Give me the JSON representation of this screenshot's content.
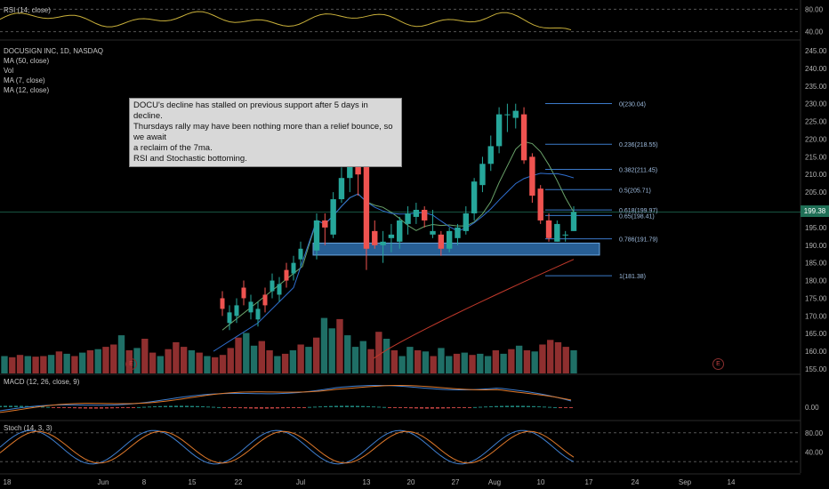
{
  "chart_data": {
    "type": "candlestick",
    "symbol_line": "DOCUSIGN INC, 1D, NASDAQ",
    "indicators_main": [
      "MA (50, close)",
      "Vol",
      "MA (7, close)",
      "MA (12, close)"
    ],
    "annotation": [
      "DOCU's decline has stalled on previous support after 5 days in decline.",
      "Thursdays rally may have been nothing more than a relief bounce, so we await",
      "a reclaim of the 7ma.",
      "RSI and Stochastic bottoming."
    ],
    "last_price": "199.38",
    "price_axis": [
      "245.00",
      "240.00",
      "235.00",
      "230.00",
      "225.00",
      "220.00",
      "215.00",
      "210.00",
      "205.00",
      "200.00",
      "195.00",
      "190.00",
      "185.00",
      "180.00",
      "175.00",
      "170.00",
      "165.00",
      "160.00",
      "155.00"
    ],
    "price_axis_range": [
      155,
      245
    ],
    "x_axis_labels": [
      "18",
      "Jun",
      "8",
      "15",
      "22",
      "Jul",
      "13",
      "20",
      "27",
      "Aug",
      "10",
      "17",
      "24",
      "Sep",
      "14"
    ],
    "fib_levels": [
      {
        "label": "0(230.04)",
        "value": 230.04
      },
      {
        "label": "0.236(218.55)",
        "value": 218.55
      },
      {
        "label": "0.382(211.45)",
        "value": 211.45
      },
      {
        "label": "0.5(205.71)",
        "value": 205.71
      },
      {
        "label": "0.618(199.97)",
        "value": 199.97
      },
      {
        "label": "0.65(198.41)",
        "value": 198.41
      },
      {
        "label": "0.786(191.79)",
        "value": 191.79
      },
      {
        "label": "1(181.38)",
        "value": 181.38
      }
    ],
    "support_zone": [
      187.2,
      190.6
    ],
    "candles": [
      {
        "o": 188.5,
        "h": 199,
        "l": 186,
        "c": 197
      },
      {
        "o": 197,
        "h": 199,
        "l": 190,
        "c": 195
      },
      {
        "o": 193,
        "h": 205,
        "l": 192,
        "c": 203
      },
      {
        "o": 203,
        "h": 212,
        "l": 202,
        "c": 209
      },
      {
        "o": 209,
        "h": 217,
        "l": 205,
        "c": 213
      },
      {
        "o": 213,
        "h": 216,
        "l": 204,
        "c": 210
      },
      {
        "o": 216,
        "h": 218,
        "l": 183,
        "c": 189
      },
      {
        "o": 194,
        "h": 197,
        "l": 189,
        "c": 190
      },
      {
        "o": 190,
        "h": 194,
        "l": 185,
        "c": 191
      },
      {
        "o": 192,
        "h": 196,
        "l": 188,
        "c": 193
      },
      {
        "o": 191,
        "h": 198,
        "l": 189,
        "c": 197
      },
      {
        "o": 196,
        "h": 201,
        "l": 193,
        "c": 199
      },
      {
        "o": 198,
        "h": 202,
        "l": 196,
        "c": 200
      },
      {
        "o": 200,
        "h": 201,
        "l": 195,
        "c": 197
      },
      {
        "o": 193,
        "h": 200,
        "l": 192,
        "c": 194
      },
      {
        "o": 193,
        "h": 194,
        "l": 187,
        "c": 189
      },
      {
        "o": 189,
        "h": 195,
        "l": 188,
        "c": 194
      },
      {
        "o": 192,
        "h": 196,
        "l": 190,
        "c": 195
      },
      {
        "o": 194,
        "h": 201,
        "l": 193,
        "c": 199
      },
      {
        "o": 199,
        "h": 209,
        "l": 197,
        "c": 208
      },
      {
        "o": 207,
        "h": 215,
        "l": 205,
        "c": 213
      },
      {
        "o": 213,
        "h": 221,
        "l": 211,
        "c": 218
      },
      {
        "o": 218,
        "h": 229,
        "l": 216,
        "c": 227
      },
      {
        "o": 227,
        "h": 230,
        "l": 222,
        "c": 227
      },
      {
        "o": 226,
        "h": 230,
        "l": 223,
        "c": 228
      },
      {
        "o": 227,
        "h": 229,
        "l": 213,
        "c": 214
      },
      {
        "o": 215,
        "h": 216,
        "l": 202,
        "c": 204
      },
      {
        "o": 206,
        "h": 207,
        "l": 196,
        "c": 197
      },
      {
        "o": 197,
        "h": 199,
        "l": 191,
        "c": 192
      },
      {
        "o": 191,
        "h": 197,
        "l": 191,
        "c": 196
      },
      {
        "o": 193,
        "h": 194,
        "l": 191,
        "c": 193
      },
      {
        "o": 194,
        "h": 201,
        "l": 194,
        "c": 199.4
      }
    ],
    "volume_bars": [
      {
        "v": 0.3,
        "up": true
      },
      {
        "v": 0.28,
        "up": false
      },
      {
        "v": 0.32,
        "up": false
      },
      {
        "v": 0.3,
        "up": true
      },
      {
        "v": 0.29,
        "up": false
      },
      {
        "v": 0.3,
        "up": false
      },
      {
        "v": 0.32,
        "up": true
      },
      {
        "v": 0.38,
        "up": false
      },
      {
        "v": 0.34,
        "up": true
      },
      {
        "v": 0.3,
        "up": false
      },
      {
        "v": 0.36,
        "up": true
      },
      {
        "v": 0.4,
        "up": false
      },
      {
        "v": 0.42,
        "up": true
      },
      {
        "v": 0.46,
        "up": false
      },
      {
        "v": 0.5,
        "up": false
      },
      {
        "v": 0.66,
        "up": true
      },
      {
        "v": 0.4,
        "up": false
      },
      {
        "v": 0.44,
        "up": true
      },
      {
        "v": 0.6,
        "up": false
      },
      {
        "v": 0.36,
        "up": false
      },
      {
        "v": 0.3,
        "up": true
      },
      {
        "v": 0.42,
        "up": false
      },
      {
        "v": 0.54,
        "up": false
      },
      {
        "v": 0.46,
        "up": false
      },
      {
        "v": 0.4,
        "up": true
      },
      {
        "v": 0.36,
        "up": false
      },
      {
        "v": 0.3,
        "up": true
      },
      {
        "v": 0.28,
        "up": false
      },
      {
        "v": 0.32,
        "up": false
      },
      {
        "v": 0.44,
        "up": false
      },
      {
        "v": 0.62,
        "up": false
      },
      {
        "v": 0.7,
        "up": true
      },
      {
        "v": 0.48,
        "up": true
      },
      {
        "v": 0.56,
        "up": false
      },
      {
        "v": 0.4,
        "up": false
      },
      {
        "v": 0.3,
        "up": true
      },
      {
        "v": 0.34,
        "up": false
      },
      {
        "v": 0.4,
        "up": true
      },
      {
        "v": 0.5,
        "up": false
      },
      {
        "v": 0.46,
        "up": true
      },
      {
        "v": 0.62,
        "up": false
      },
      {
        "v": 0.96,
        "up": true
      },
      {
        "v": 0.78,
        "up": true
      },
      {
        "v": 0.94,
        "up": false
      },
      {
        "v": 0.66,
        "up": true
      },
      {
        "v": 0.46,
        "up": true
      },
      {
        "v": 0.56,
        "up": true
      },
      {
        "v": 0.42,
        "up": false
      },
      {
        "v": 0.72,
        "up": false
      },
      {
        "v": 0.6,
        "up": true
      },
      {
        "v": 0.4,
        "up": false
      },
      {
        "v": 0.3,
        "up": true
      },
      {
        "v": 0.46,
        "up": true
      },
      {
        "v": 0.4,
        "up": false
      },
      {
        "v": 0.38,
        "up": true
      },
      {
        "v": 0.3,
        "up": false
      },
      {
        "v": 0.44,
        "up": true
      },
      {
        "v": 0.3,
        "up": true
      },
      {
        "v": 0.34,
        "up": false
      },
      {
        "v": 0.36,
        "up": true
      },
      {
        "v": 0.32,
        "up": false
      },
      {
        "v": 0.34,
        "up": true
      },
      {
        "v": 0.3,
        "up": true
      },
      {
        "v": 0.4,
        "up": false
      },
      {
        "v": 0.34,
        "up": true
      },
      {
        "v": 0.42,
        "up": false
      },
      {
        "v": 0.48,
        "up": true
      },
      {
        "v": 0.4,
        "up": false
      },
      {
        "v": 0.38,
        "up": true
      },
      {
        "v": 0.5,
        "up": false
      },
      {
        "v": 0.58,
        "up": false
      },
      {
        "v": 0.54,
        "up": false
      },
      {
        "v": 0.46,
        "up": false
      },
      {
        "v": 0.4,
        "up": true
      }
    ],
    "rsi": {
      "label": "RSI (14, close)",
      "axis": [
        "80.00",
        "40.00"
      ]
    },
    "macd": {
      "label": "MACD (12, 26, close, 9)",
      "axis": [
        "0.00"
      ]
    },
    "stoch": {
      "label": "Stoch (14, 3, 3)",
      "axis": [
        "80.00",
        "40.00"
      ]
    },
    "colors": {
      "up": "#26a69a",
      "down": "#ef5350",
      "vol_up": "#1f6f66",
      "vol_down": "#8f2f2f",
      "ma50": "#c0392b",
      "ma7": "#6aa36a",
      "ma12": "#2f6fd0",
      "fib": "#3b7ac9",
      "zone": "#2e6fae",
      "rsi": "#c9b03a",
      "macd": "#3f7fd0",
      "signal": "#e0792b",
      "stoch_k": "#3f7fd0",
      "stoch_d": "#e0792b"
    }
  }
}
